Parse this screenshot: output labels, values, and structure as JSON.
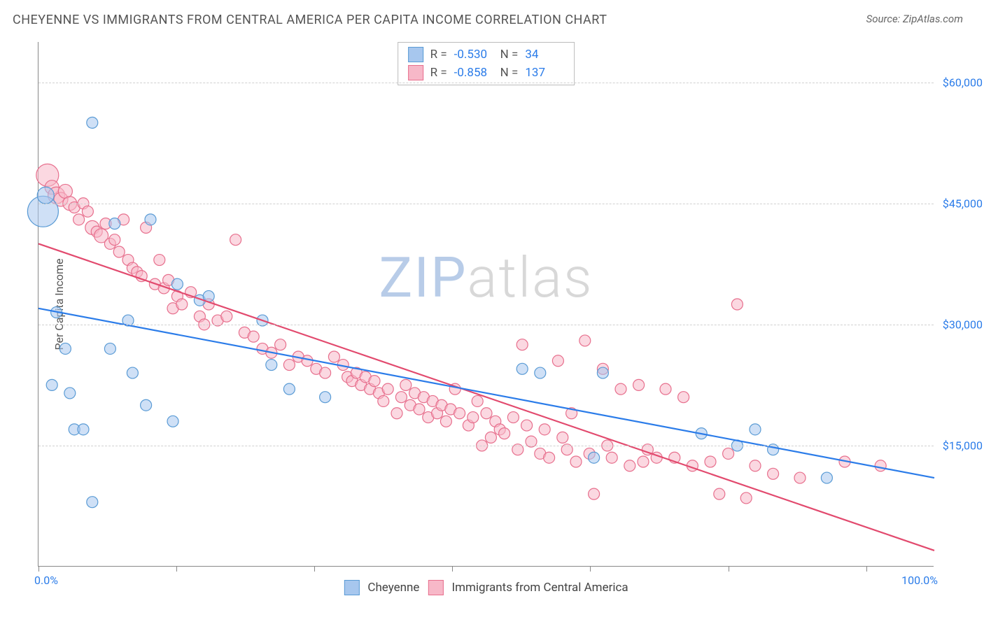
{
  "title": "CHEYENNE VS IMMIGRANTS FROM CENTRAL AMERICA PER CAPITA INCOME CORRELATION CHART",
  "source": "Source: ZipAtlas.com",
  "watermark": {
    "part1": "ZIP",
    "part2": "atlas"
  },
  "chart": {
    "type": "scatter",
    "xlim": [
      0,
      100
    ],
    "ylim": [
      0,
      65000
    ],
    "xtick_positions": [
      0,
      15.4,
      30.8,
      46.2,
      61.6,
      77.0,
      92.4
    ],
    "xtick_labels": {
      "first": "0.0%",
      "last": "100.0%"
    },
    "ytick_positions": [
      15000,
      30000,
      45000,
      60000
    ],
    "ytick_labels": [
      "$15,000",
      "$30,000",
      "$45,000",
      "$60,000"
    ],
    "yaxis_label": "Per Capita Income",
    "background_color": "#ffffff",
    "grid_color": "#d0d0d0",
    "border_color": "#888888"
  },
  "series": {
    "cheyenne": {
      "label": "Cheyenne",
      "R_label": "R =",
      "R": "-0.530",
      "N_label": "N =",
      "N": "34",
      "fill_color": "#a7c7ee",
      "stroke_color": "#5a9bd5",
      "fill_opacity": 0.55,
      "trend": {
        "x1": 0,
        "y1": 32000,
        "x2": 100,
        "y2": 11000,
        "color": "#2b7ce9",
        "width": 2.2
      },
      "points": [
        {
          "x": 0.5,
          "y": 44000,
          "r": 22
        },
        {
          "x": 0.8,
          "y": 46000,
          "r": 12
        },
        {
          "x": 6,
          "y": 55000,
          "r": 8
        },
        {
          "x": 2,
          "y": 31500,
          "r": 8
        },
        {
          "x": 3,
          "y": 27000,
          "r": 8
        },
        {
          "x": 1.5,
          "y": 22500,
          "r": 8
        },
        {
          "x": 3.5,
          "y": 21500,
          "r": 8
        },
        {
          "x": 4,
          "y": 17000,
          "r": 8
        },
        {
          "x": 5,
          "y": 17000,
          "r": 8
        },
        {
          "x": 6,
          "y": 8000,
          "r": 8
        },
        {
          "x": 8,
          "y": 27000,
          "r": 8
        },
        {
          "x": 8.5,
          "y": 42500,
          "r": 8
        },
        {
          "x": 10,
          "y": 30500,
          "r": 8
        },
        {
          "x": 10.5,
          "y": 24000,
          "r": 8
        },
        {
          "x": 12,
          "y": 20000,
          "r": 8
        },
        {
          "x": 12.5,
          "y": 43000,
          "r": 8
        },
        {
          "x": 15,
          "y": 18000,
          "r": 8
        },
        {
          "x": 15.5,
          "y": 35000,
          "r": 8
        },
        {
          "x": 18,
          "y": 33000,
          "r": 8
        },
        {
          "x": 19,
          "y": 33500,
          "r": 8
        },
        {
          "x": 25,
          "y": 30500,
          "r": 8
        },
        {
          "x": 26,
          "y": 25000,
          "r": 8
        },
        {
          "x": 28,
          "y": 22000,
          "r": 8
        },
        {
          "x": 32,
          "y": 21000,
          "r": 8
        },
        {
          "x": 54,
          "y": 24500,
          "r": 8
        },
        {
          "x": 56,
          "y": 24000,
          "r": 8
        },
        {
          "x": 62,
          "y": 13500,
          "r": 8
        },
        {
          "x": 63,
          "y": 24000,
          "r": 8
        },
        {
          "x": 74,
          "y": 16500,
          "r": 8
        },
        {
          "x": 78,
          "y": 15000,
          "r": 8
        },
        {
          "x": 80,
          "y": 17000,
          "r": 8
        },
        {
          "x": 82,
          "y": 14500,
          "r": 8
        },
        {
          "x": 88,
          "y": 11000,
          "r": 8
        }
      ]
    },
    "immigrants": {
      "label": "Immigrants from Central America",
      "R_label": "R =",
      "R": "-0.858",
      "N_label": "N =",
      "N": "137",
      "fill_color": "#f7b8c8",
      "stroke_color": "#e76f8d",
      "fill_opacity": 0.55,
      "trend": {
        "x1": 0,
        "y1": 40000,
        "x2": 100,
        "y2": 2000,
        "color": "#e24a6e",
        "width": 2.2
      },
      "points": [
        {
          "x": 1,
          "y": 48500,
          "r": 16
        },
        {
          "x": 1.5,
          "y": 47000,
          "r": 10
        },
        {
          "x": 2,
          "y": 46000,
          "r": 12
        },
        {
          "x": 2.5,
          "y": 45500,
          "r": 10
        },
        {
          "x": 3,
          "y": 46500,
          "r": 10
        },
        {
          "x": 3.5,
          "y": 45000,
          "r": 10
        },
        {
          "x": 4,
          "y": 44500,
          "r": 8
        },
        {
          "x": 4.5,
          "y": 43000,
          "r": 8
        },
        {
          "x": 5,
          "y": 45000,
          "r": 8
        },
        {
          "x": 5.5,
          "y": 44000,
          "r": 8
        },
        {
          "x": 6,
          "y": 42000,
          "r": 10
        },
        {
          "x": 6.5,
          "y": 41500,
          "r": 8
        },
        {
          "x": 7,
          "y": 41000,
          "r": 10
        },
        {
          "x": 7.5,
          "y": 42500,
          "r": 8
        },
        {
          "x": 8,
          "y": 40000,
          "r": 8
        },
        {
          "x": 8.5,
          "y": 40500,
          "r": 8
        },
        {
          "x": 9,
          "y": 39000,
          "r": 8
        },
        {
          "x": 9.5,
          "y": 43000,
          "r": 8
        },
        {
          "x": 10,
          "y": 38000,
          "r": 8
        },
        {
          "x": 10.5,
          "y": 37000,
          "r": 8
        },
        {
          "x": 11,
          "y": 36500,
          "r": 8
        },
        {
          "x": 11.5,
          "y": 36000,
          "r": 8
        },
        {
          "x": 12,
          "y": 42000,
          "r": 8
        },
        {
          "x": 13,
          "y": 35000,
          "r": 8
        },
        {
          "x": 13.5,
          "y": 38000,
          "r": 8
        },
        {
          "x": 14,
          "y": 34500,
          "r": 8
        },
        {
          "x": 14.5,
          "y": 35500,
          "r": 8
        },
        {
          "x": 15,
          "y": 32000,
          "r": 8
        },
        {
          "x": 15.5,
          "y": 33500,
          "r": 8
        },
        {
          "x": 16,
          "y": 32500,
          "r": 8
        },
        {
          "x": 17,
          "y": 34000,
          "r": 8
        },
        {
          "x": 18,
          "y": 31000,
          "r": 8
        },
        {
          "x": 18.5,
          "y": 30000,
          "r": 8
        },
        {
          "x": 19,
          "y": 32500,
          "r": 8
        },
        {
          "x": 20,
          "y": 30500,
          "r": 8
        },
        {
          "x": 21,
          "y": 31000,
          "r": 8
        },
        {
          "x": 22,
          "y": 40500,
          "r": 8
        },
        {
          "x": 23,
          "y": 29000,
          "r": 8
        },
        {
          "x": 24,
          "y": 28500,
          "r": 8
        },
        {
          "x": 25,
          "y": 27000,
          "r": 8
        },
        {
          "x": 26,
          "y": 26500,
          "r": 8
        },
        {
          "x": 27,
          "y": 27500,
          "r": 8
        },
        {
          "x": 28,
          "y": 25000,
          "r": 8
        },
        {
          "x": 29,
          "y": 26000,
          "r": 8
        },
        {
          "x": 30,
          "y": 25500,
          "r": 8
        },
        {
          "x": 31,
          "y": 24500,
          "r": 8
        },
        {
          "x": 32,
          "y": 24000,
          "r": 8
        },
        {
          "x": 33,
          "y": 26000,
          "r": 8
        },
        {
          "x": 34,
          "y": 25000,
          "r": 8
        },
        {
          "x": 34.5,
          "y": 23500,
          "r": 8
        },
        {
          "x": 35,
          "y": 23000,
          "r": 8
        },
        {
          "x": 35.5,
          "y": 24000,
          "r": 8
        },
        {
          "x": 36,
          "y": 22500,
          "r": 8
        },
        {
          "x": 36.5,
          "y": 23500,
          "r": 8
        },
        {
          "x": 37,
          "y": 22000,
          "r": 8
        },
        {
          "x": 37.5,
          "y": 23000,
          "r": 8
        },
        {
          "x": 38,
          "y": 21500,
          "r": 8
        },
        {
          "x": 38.5,
          "y": 20500,
          "r": 8
        },
        {
          "x": 39,
          "y": 22000,
          "r": 8
        },
        {
          "x": 40,
          "y": 19000,
          "r": 8
        },
        {
          "x": 40.5,
          "y": 21000,
          "r": 8
        },
        {
          "x": 41,
          "y": 22500,
          "r": 8
        },
        {
          "x": 41.5,
          "y": 20000,
          "r": 8
        },
        {
          "x": 42,
          "y": 21500,
          "r": 8
        },
        {
          "x": 42.5,
          "y": 19500,
          "r": 8
        },
        {
          "x": 43,
          "y": 21000,
          "r": 8
        },
        {
          "x": 43.5,
          "y": 18500,
          "r": 8
        },
        {
          "x": 44,
          "y": 20500,
          "r": 8
        },
        {
          "x": 44.5,
          "y": 19000,
          "r": 8
        },
        {
          "x": 45,
          "y": 20000,
          "r": 8
        },
        {
          "x": 45.5,
          "y": 18000,
          "r": 8
        },
        {
          "x": 46,
          "y": 19500,
          "r": 8
        },
        {
          "x": 46.5,
          "y": 22000,
          "r": 8
        },
        {
          "x": 47,
          "y": 19000,
          "r": 8
        },
        {
          "x": 48,
          "y": 17500,
          "r": 8
        },
        {
          "x": 48.5,
          "y": 18500,
          "r": 8
        },
        {
          "x": 49,
          "y": 20500,
          "r": 8
        },
        {
          "x": 49.5,
          "y": 15000,
          "r": 8
        },
        {
          "x": 50,
          "y": 19000,
          "r": 8
        },
        {
          "x": 50.5,
          "y": 16000,
          "r": 8
        },
        {
          "x": 51,
          "y": 18000,
          "r": 8
        },
        {
          "x": 51.5,
          "y": 17000,
          "r": 8
        },
        {
          "x": 52,
          "y": 16500,
          "r": 8
        },
        {
          "x": 53,
          "y": 18500,
          "r": 8
        },
        {
          "x": 53.5,
          "y": 14500,
          "r": 8
        },
        {
          "x": 54,
          "y": 27500,
          "r": 8
        },
        {
          "x": 54.5,
          "y": 17500,
          "r": 8
        },
        {
          "x": 55,
          "y": 15500,
          "r": 8
        },
        {
          "x": 56,
          "y": 14000,
          "r": 8
        },
        {
          "x": 56.5,
          "y": 17000,
          "r": 8
        },
        {
          "x": 57,
          "y": 13500,
          "r": 8
        },
        {
          "x": 58,
          "y": 25500,
          "r": 8
        },
        {
          "x": 58.5,
          "y": 16000,
          "r": 8
        },
        {
          "x": 59,
          "y": 14500,
          "r": 8
        },
        {
          "x": 59.5,
          "y": 19000,
          "r": 8
        },
        {
          "x": 60,
          "y": 13000,
          "r": 8
        },
        {
          "x": 61,
          "y": 28000,
          "r": 8
        },
        {
          "x": 61.5,
          "y": 14000,
          "r": 8
        },
        {
          "x": 62,
          "y": 9000,
          "r": 8
        },
        {
          "x": 63,
          "y": 24500,
          "r": 8
        },
        {
          "x": 63.5,
          "y": 15000,
          "r": 8
        },
        {
          "x": 64,
          "y": 13500,
          "r": 8
        },
        {
          "x": 65,
          "y": 22000,
          "r": 8
        },
        {
          "x": 66,
          "y": 12500,
          "r": 8
        },
        {
          "x": 67,
          "y": 22500,
          "r": 8
        },
        {
          "x": 67.5,
          "y": 13000,
          "r": 8
        },
        {
          "x": 68,
          "y": 14500,
          "r": 8
        },
        {
          "x": 69,
          "y": 13500,
          "r": 8
        },
        {
          "x": 70,
          "y": 22000,
          "r": 8
        },
        {
          "x": 71,
          "y": 13500,
          "r": 8
        },
        {
          "x": 72,
          "y": 21000,
          "r": 8
        },
        {
          "x": 73,
          "y": 12500,
          "r": 8
        },
        {
          "x": 75,
          "y": 13000,
          "r": 8
        },
        {
          "x": 76,
          "y": 9000,
          "r": 8
        },
        {
          "x": 77,
          "y": 14000,
          "r": 8
        },
        {
          "x": 78,
          "y": 32500,
          "r": 8
        },
        {
          "x": 79,
          "y": 8500,
          "r": 8
        },
        {
          "x": 80,
          "y": 12500,
          "r": 8
        },
        {
          "x": 82,
          "y": 11500,
          "r": 8
        },
        {
          "x": 85,
          "y": 11000,
          "r": 8
        },
        {
          "x": 90,
          "y": 13000,
          "r": 8
        },
        {
          "x": 94,
          "y": 12500,
          "r": 8
        }
      ]
    }
  }
}
